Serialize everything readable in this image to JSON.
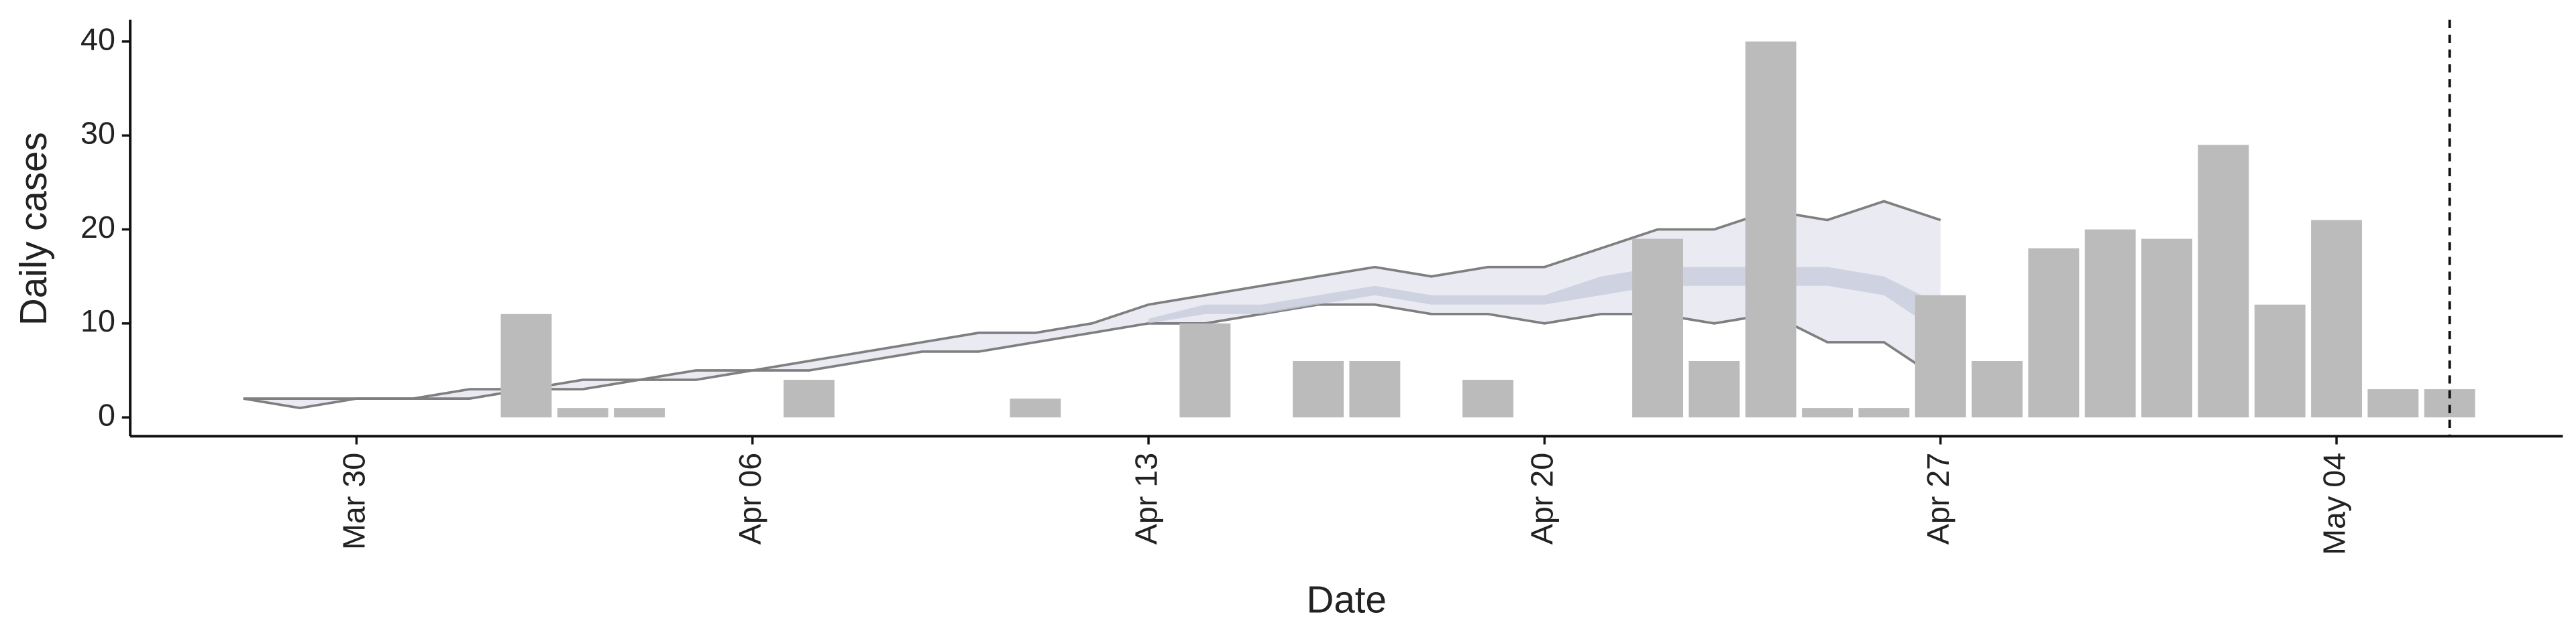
{
  "chart_data": {
    "type": "bar",
    "x_label": "Date",
    "y_label": "Daily cases",
    "color": "#bbbbbb",
    "x": [
      "Apr 02",
      "Apr 03",
      "Apr 04",
      "Apr 07",
      "Apr 11",
      "Apr 14",
      "Apr 16",
      "Apr 17",
      "Apr 19",
      "Apr 22",
      "Apr 23",
      "Apr 24",
      "Apr 25",
      "Apr 26",
      "Apr 27",
      "Apr 28",
      "Apr 29",
      "Apr 30",
      "May 01",
      "May 02",
      "May 03",
      "May 04",
      "May 05",
      "May 06"
    ],
    "values": [
      11,
      1,
      1,
      4,
      2,
      10,
      6,
      6,
      4,
      19,
      6,
      40,
      1,
      1,
      13,
      6,
      18,
      20,
      19,
      29,
      12,
      21,
      3,
      3
    ],
    "xlim": [
      "Mar 26",
      "May 08"
    ],
    "xticks": [
      "Mar 30",
      "Apr 06",
      "Apr 13",
      "Apr 20",
      "Apr 27",
      "May 04"
    ],
    "ylim": [
      -2,
      42.3
    ],
    "yticks": [
      0,
      10,
      20,
      30,
      40
    ],
    "vline": "May 06",
    "bands": [
      {
        "color": "#e9eaf2",
        "line_color": "#7f7f7f",
        "x": [
          "Mar 28",
          "Mar 29",
          "Mar 30",
          "Mar 31",
          "Apr 01",
          "Apr 02",
          "Apr 03",
          "Apr 04",
          "Apr 05",
          "Apr 06",
          "Apr 07",
          "Apr 08",
          "Apr 09",
          "Apr 10",
          "Apr 11",
          "Apr 12",
          "Apr 13",
          "Apr 14",
          "Apr 15",
          "Apr 16",
          "Apr 17",
          "Apr 18",
          "Apr 19",
          "Apr 20",
          "Apr 21",
          "Apr 22",
          "Apr 23",
          "Apr 24",
          "Apr 25",
          "Apr 26",
          "Apr 27"
        ],
        "upper": [
          2,
          2,
          2,
          2,
          3,
          3,
          4,
          4,
          5,
          5,
          6,
          7,
          8,
          9,
          9,
          10,
          12,
          13,
          14,
          15,
          16,
          15,
          16,
          16,
          18,
          20,
          20,
          22,
          21,
          23,
          21
        ],
        "lower": [
          2,
          1,
          2,
          2,
          2,
          3,
          3,
          4,
          4,
          5,
          5,
          6,
          7,
          7,
          8,
          9,
          10,
          10,
          11,
          12,
          12,
          11,
          11,
          10,
          11,
          11,
          10,
          11,
          8,
          8,
          4
        ]
      },
      {
        "color": "#c3c9da",
        "x": [
          "Apr 13",
          "Apr 14",
          "Apr 15",
          "Apr 16",
          "Apr 17",
          "Apr 18",
          "Apr 19",
          "Apr 20",
          "Apr 21",
          "Apr 22",
          "Apr 23",
          "Apr 24",
          "Apr 25",
          "Apr 26",
          "Apr 27"
        ],
        "upper": [
          10.5,
          12,
          12,
          13,
          14,
          13,
          13,
          13,
          15,
          16,
          16,
          16,
          16,
          15,
          12
        ],
        "lower": [
          10,
          11,
          11,
          12,
          13,
          12,
          12,
          12,
          13,
          14,
          14,
          14,
          14,
          13,
          9
        ]
      }
    ]
  }
}
